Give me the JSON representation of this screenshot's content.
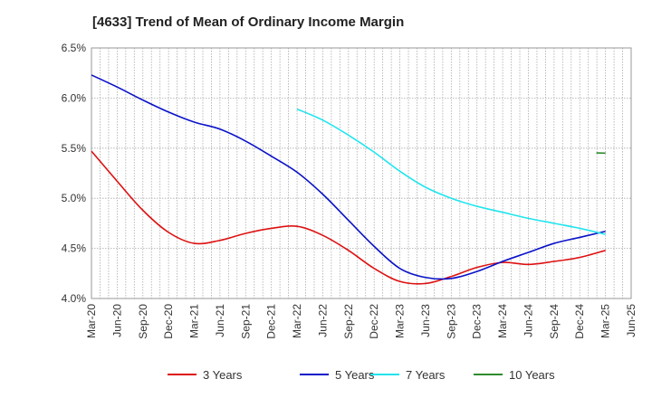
{
  "chart_data": {
    "type": "line",
    "title": "[4633]  Trend of Mean of Ordinary Income Margin",
    "xlabel": "",
    "ylabel": "",
    "x": [
      "Mar-20",
      "Jun-20",
      "Sep-20",
      "Dec-20",
      "Mar-21",
      "Jun-21",
      "Sep-21",
      "Dec-21",
      "Mar-22",
      "Jun-22",
      "Sep-22",
      "Dec-22",
      "Mar-23",
      "Jun-23",
      "Sep-23",
      "Dec-23",
      "Mar-24",
      "Jun-24",
      "Sep-24",
      "Dec-24",
      "Mar-25"
    ],
    "x_ticks": [
      "Mar-20",
      "Jun-20",
      "Sep-20",
      "Dec-20",
      "Mar-21",
      "Jun-21",
      "Sep-21",
      "Dec-21",
      "Mar-22",
      "Jun-22",
      "Sep-22",
      "Dec-22",
      "Mar-23",
      "Jun-23",
      "Sep-23",
      "Dec-23",
      "Mar-24",
      "Jun-24",
      "Sep-24",
      "Dec-24",
      "Mar-25",
      "Jun-25"
    ],
    "y_ticks": [
      "6.5%",
      "6.0%",
      "5.5%",
      "5.0%",
      "4.5%",
      "4.0%"
    ],
    "ylim": [
      4.0,
      6.5
    ],
    "y_unit": "%",
    "grid": true,
    "legend_position": "bottom",
    "series": [
      {
        "name": "3 Years",
        "color": "#dd1111",
        "values": [
          5.47,
          5.17,
          4.88,
          4.66,
          4.55,
          4.58,
          4.65,
          4.7,
          4.72,
          4.63,
          4.48,
          4.3,
          4.17,
          4.15,
          4.22,
          4.31,
          4.36,
          4.34,
          4.37,
          4.41,
          4.48
        ]
      },
      {
        "name": "5 Years",
        "color": "#0a12c8",
        "values": [
          6.23,
          6.11,
          5.98,
          5.86,
          5.76,
          5.69,
          5.57,
          5.42,
          5.26,
          5.04,
          4.78,
          4.52,
          4.3,
          4.21,
          4.2,
          4.27,
          4.37,
          4.46,
          4.55,
          4.61,
          4.67
        ]
      },
      {
        "name": "7 Years",
        "color": "#22e4ee",
        "values": [
          null,
          null,
          null,
          null,
          null,
          null,
          null,
          null,
          5.89,
          5.78,
          5.63,
          5.46,
          5.27,
          5.11,
          5.0,
          4.92,
          4.86,
          4.8,
          4.75,
          4.7,
          4.64
        ]
      },
      {
        "name": "10 Years",
        "color": "#2e8b2e",
        "values": [
          null,
          null,
          null,
          null,
          null,
          null,
          null,
          null,
          null,
          null,
          null,
          null,
          null,
          null,
          null,
          null,
          null,
          null,
          null,
          null,
          5.45
        ]
      }
    ]
  }
}
